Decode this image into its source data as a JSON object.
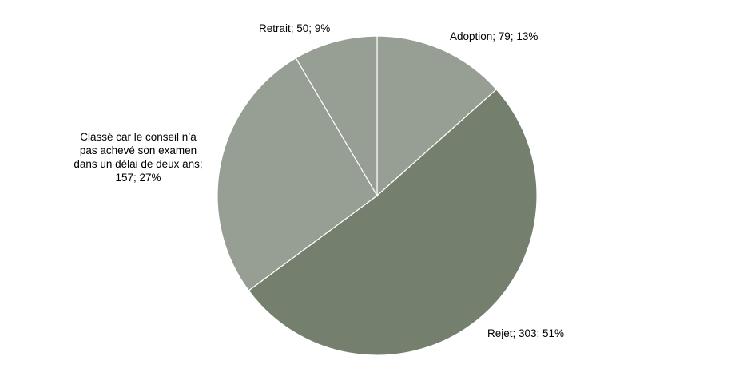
{
  "chart_data": {
    "type": "pie",
    "title": "",
    "slices": [
      {
        "name": "Adoption",
        "value": 79,
        "percent": 13,
        "label": "Adoption; 79; 13%",
        "color": "#979f94"
      },
      {
        "name": "Rejet",
        "value": 303,
        "percent": 51,
        "label": "Rejet; 303; 51%",
        "color": "#747f6e"
      },
      {
        "name": "Classé car le conseil n’a pas achevé son examen dans un délai de deux ans",
        "value": 157,
        "percent": 27,
        "label": "Classé car le conseil n’a\npas achevé son examen\ndans un délai de deux ans;\n157; 27%",
        "color": "#979f94"
      },
      {
        "name": "Retrait",
        "value": 50,
        "percent": 9,
        "label": "Retrait; 50; 9%",
        "color": "#979f94"
      }
    ],
    "start_angle_deg": 0,
    "direction": "clockwise",
    "slice_border_color": "#ffffff",
    "legend": "none"
  }
}
